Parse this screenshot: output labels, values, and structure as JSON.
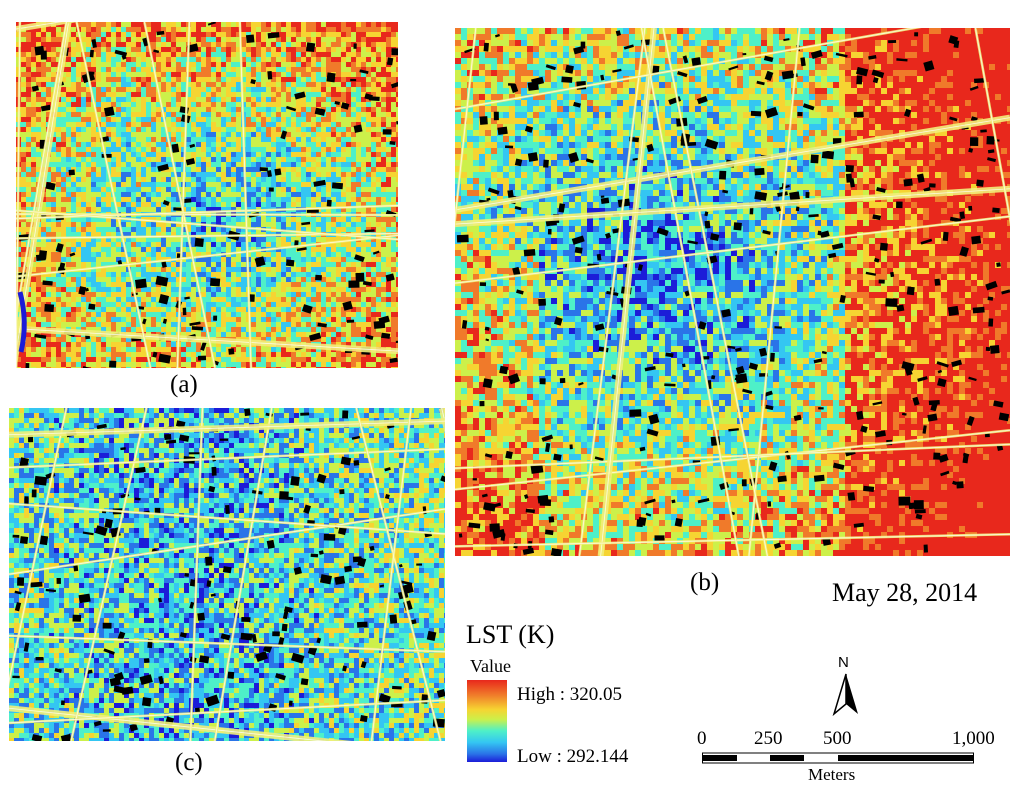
{
  "panels": [
    {
      "id": "a",
      "caption": "(a)"
    },
    {
      "id": "b",
      "caption": "(b)"
    },
    {
      "id": "c",
      "caption": "(c)"
    }
  ],
  "date": "May 28, 2014",
  "legend": {
    "title": "LST (K)",
    "subtitle": "Value",
    "high_label": "High : 320.05",
    "low_label": "Low : 292.144",
    "high_color": "#e8281c",
    "low_color": "#1c1cd8"
  },
  "north_arrow": {
    "label": "N",
    "icon": "north-arrow-icon"
  },
  "scale_bar": {
    "ticks": [
      "0",
      "250",
      "500",
      "1,000"
    ],
    "units": "Meters"
  },
  "colors": {
    "palette": [
      "#e8281c",
      "#f07a2a",
      "#f6d432",
      "#ccf04a",
      "#4ef0c8",
      "#34c6f2",
      "#2a74e8",
      "#1c1cd8"
    ],
    "road": "#f2ee7a",
    "building_shadow": "#000000"
  }
}
